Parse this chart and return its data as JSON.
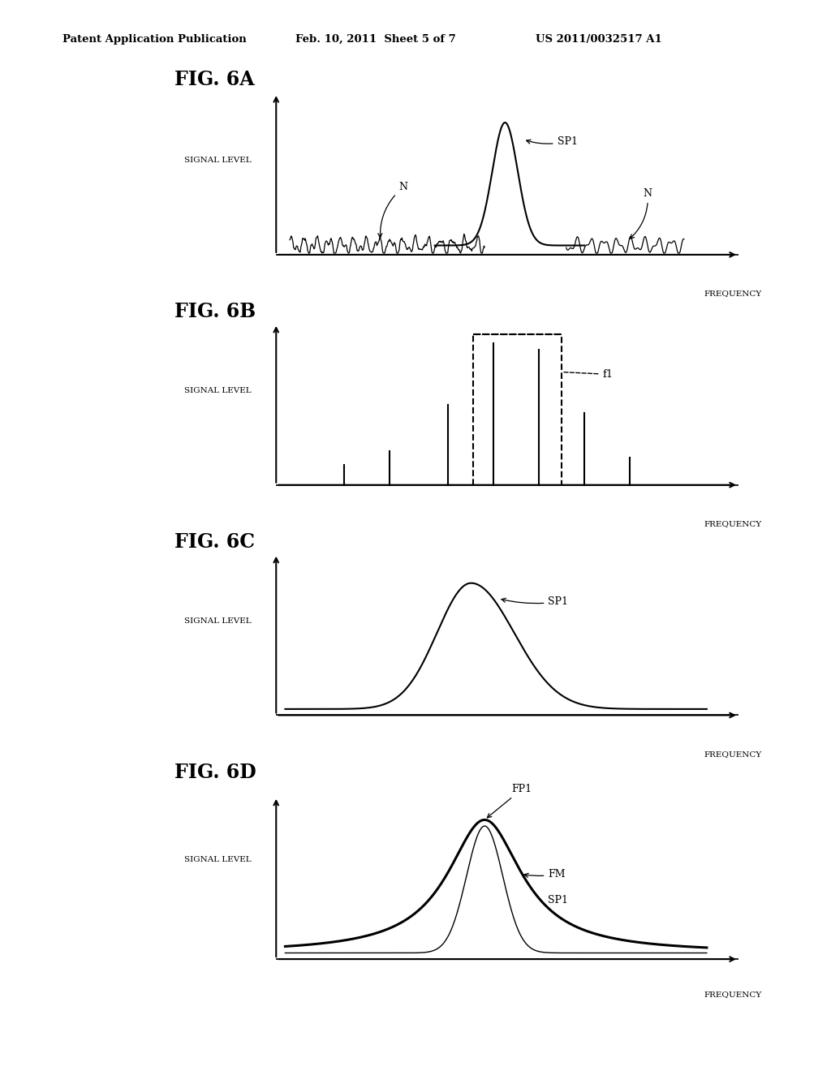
{
  "header_left": "Patent Application Publication",
  "header_mid": "Feb. 10, 2011  Sheet 5 of 7",
  "header_right": "US 2011/0032517 A1",
  "bg_color": "#ffffff",
  "line_color": "#000000",
  "fig6a_label": "FIG. 6A",
  "fig6b_label": "FIG. 6B",
  "fig6c_label": "FIG. 6C",
  "fig6d_label": "FIG. 6D",
  "ylabel": "SIGNAL LEVEL",
  "xlabel": "FREQUENCY"
}
